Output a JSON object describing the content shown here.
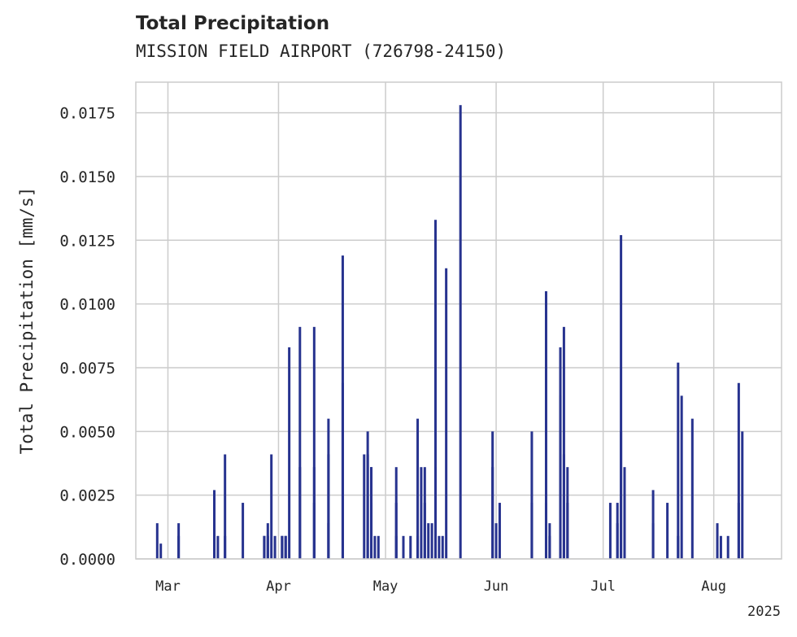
{
  "chart_data": {
    "type": "bar",
    "title": "Total Precipitation",
    "subtitle": "MISSION FIELD AIRPORT (726798-24150)",
    "ylabel": "Total Precipitation [mm/s]",
    "xlabel": "",
    "year_label": "2025",
    "ylim": [
      0,
      0.0187
    ],
    "xlim": [
      "2025-02-20",
      "2025-08-20"
    ],
    "grid": true,
    "bar_color": "#27338f",
    "y_ticks": [
      0.0,
      0.0025,
      0.005,
      0.0075,
      0.01,
      0.0125,
      0.015,
      0.0175
    ],
    "y_tick_labels": [
      "0.0000",
      "0.0025",
      "0.0050",
      "0.0075",
      "0.0100",
      "0.0125",
      "0.0150",
      "0.0175"
    ],
    "x_ticks": [
      {
        "date": "2025-03-01",
        "label": "Mar"
      },
      {
        "date": "2025-04-01",
        "label": "Apr"
      },
      {
        "date": "2025-05-01",
        "label": "May"
      },
      {
        "date": "2025-06-01",
        "label": "Jun"
      },
      {
        "date": "2025-07-01",
        "label": "Jul"
      },
      {
        "date": "2025-08-01",
        "label": "Aug"
      }
    ],
    "series": [
      {
        "x": [
          "2025-02-26",
          "2025-02-27",
          "2025-03-04",
          "2025-03-04",
          "2025-03-14",
          "2025-03-14",
          "2025-03-15",
          "2025-03-17",
          "2025-03-17",
          "2025-03-22",
          "2025-03-28",
          "2025-03-28",
          "2025-03-29",
          "2025-03-29",
          "2025-03-30",
          "2025-03-31",
          "2025-04-02",
          "2025-04-02",
          "2025-04-03",
          "2025-04-03",
          "2025-04-04",
          "2025-04-07",
          "2025-04-07",
          "2025-04-11",
          "2025-04-11",
          "2025-04-11",
          "2025-04-15",
          "2025-04-15",
          "2025-04-15",
          "2025-04-19",
          "2025-04-19",
          "2025-04-25",
          "2025-04-26",
          "2025-04-26",
          "2025-04-27",
          "2025-04-27",
          "2025-04-27",
          "2025-04-28",
          "2025-04-29",
          "2025-05-04",
          "2025-05-04",
          "2025-05-04",
          "2025-05-06",
          "2025-05-08",
          "2025-05-10",
          "2025-05-10",
          "2025-05-11",
          "2025-05-12",
          "2025-05-12",
          "2025-05-13",
          "2025-05-14",
          "2025-05-15",
          "2025-05-15",
          "2025-05-16",
          "2025-05-17",
          "2025-05-18",
          "2025-05-22",
          "2025-05-31",
          "2025-05-31",
          "2025-06-01",
          "2025-06-02",
          "2025-06-11",
          "2025-06-11",
          "2025-06-15",
          "2025-06-15",
          "2025-06-16",
          "2025-06-16",
          "2025-06-19",
          "2025-06-19",
          "2025-06-20",
          "2025-06-20",
          "2025-06-21",
          "2025-06-21",
          "2025-07-03",
          "2025-07-05",
          "2025-07-05",
          "2025-07-06",
          "2025-07-06",
          "2025-07-07",
          "2025-07-15",
          "2025-07-15",
          "2025-07-19",
          "2025-07-22",
          "2025-07-22",
          "2025-07-23",
          "2025-07-26",
          "2025-08-02",
          "2025-08-03",
          "2025-08-05",
          "2025-08-08",
          "2025-08-08",
          "2025-08-09"
        ],
        "y": [
          0.0014,
          0.0006,
          0.0014,
          0.0009,
          0.0027,
          0.0014,
          0.0009,
          0.0041,
          0.0009,
          0.0022,
          0.0009,
          0.0009,
          0.0014,
          0.0009,
          0.0041,
          0.0009,
          0.0009,
          0.0009,
          0.0009,
          0.0009,
          0.0083,
          0.0091,
          0.0036,
          0.0091,
          0.0036,
          0.0022,
          0.0055,
          0.0041,
          0.0014,
          0.0119,
          0.0069,
          0.0041,
          0.0041,
          0.005,
          0.0036,
          0.0022,
          0.0036,
          0.0009,
          0.0009,
          0.0009,
          0.0022,
          0.0036,
          0.0009,
          0.0009,
          0.0009,
          0.0055,
          0.0036,
          0.0022,
          0.0036,
          0.0014,
          0.0014,
          0.0133,
          0.0036,
          0.0009,
          0.0009,
          0.0114,
          0.0178,
          0.005,
          0.0036,
          0.0014,
          0.0022,
          0.005,
          0.0022,
          0.0022,
          0.0105,
          0.0014,
          0.0009,
          0.0083,
          0.0064,
          0.0091,
          0.0041,
          0.0036,
          0.0022,
          0.0022,
          0.0022,
          0.0014,
          0.005,
          0.0127,
          0.0036,
          0.0014,
          0.0027,
          0.0022,
          0.0009,
          0.0077,
          0.0064,
          0.0055,
          0.0014,
          0.0009,
          0.0009,
          0.0022,
          0.0069,
          0.005
        ]
      }
    ]
  }
}
